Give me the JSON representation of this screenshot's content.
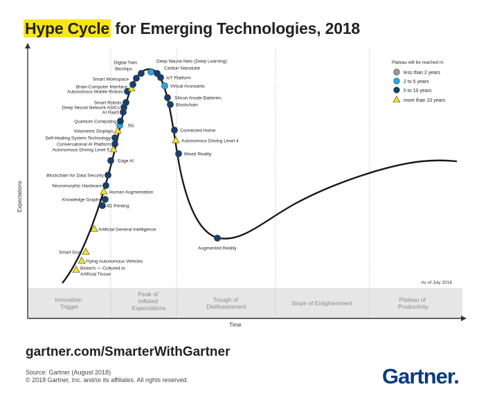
{
  "title": {
    "highlight": "Hype Cycle",
    "rest": "for Emerging Technologies, 2018"
  },
  "axes": {
    "y_label": "Expectations",
    "x_label": "Time"
  },
  "phases": [
    {
      "id": "innovation-trigger",
      "lines": [
        "Innovation",
        "Trigger"
      ]
    },
    {
      "id": "peak",
      "lines": [
        "Peak of",
        "Inflated",
        "Expectations"
      ]
    },
    {
      "id": "trough",
      "lines": [
        "Trough of",
        "Disillusionment"
      ]
    },
    {
      "id": "slope",
      "lines": [
        "Slope of Enlightenment"
      ]
    },
    {
      "id": "plateau",
      "lines": [
        "Plateau of",
        "Productivity"
      ]
    }
  ],
  "legend": {
    "title": "Plateau will be reached in:",
    "items": [
      {
        "label": "less than 2 years",
        "shape": "circle",
        "color": "#9a9a9a"
      },
      {
        "label": "2 to 5 years",
        "shape": "circle",
        "color": "#29a9e1"
      },
      {
        "label": "5 to 10 years",
        "shape": "circle",
        "color": "#17406e"
      },
      {
        "label": "more than 10 years",
        "shape": "triangle",
        "color": "#f7e51c"
      }
    ]
  },
  "as_of": "As of July 2018",
  "technologies": [
    {
      "label": "Biotech — Cultured or",
      "label2": "Artificial Tissue",
      "plateau": "more than 10 years"
    },
    {
      "label": "Flying Autonomous Vehicles",
      "plateau": "more than 10 years"
    },
    {
      "label": "Smart Dust",
      "plateau": "more than 10 years"
    },
    {
      "label": "Artificial General Intelligence",
      "plateau": "more than 10 years"
    },
    {
      "label": "4D Printing",
      "plateau": "5 to 10 years"
    },
    {
      "label": "Knowledge Graphs",
      "plateau": "5 to 10 years"
    },
    {
      "label": "Human Augmentation",
      "plateau": "more than 10 years"
    },
    {
      "label": "Neuromorphic Hardware",
      "plateau": "5 to 10 years"
    },
    {
      "label": "Blockchain for Data Security",
      "plateau": "5 to 10 years"
    },
    {
      "label": "Edge AI",
      "plateau": "5 to 10 years"
    },
    {
      "label": "Autonomous Driving Level 5",
      "plateau": "more than 10 years"
    },
    {
      "label": "Conversational AI Platform",
      "plateau": "5 to 10 years"
    },
    {
      "label": "Self-Healing System Technology",
      "plateau": "5 to 10 years"
    },
    {
      "label": "Volumetric Displays",
      "plateau": "more than 10 years"
    },
    {
      "label": "5G",
      "plateau": "2 to 5 years"
    },
    {
      "label": "Quantum Computing",
      "plateau": "5 to 10 years"
    },
    {
      "label": "AI PaaS",
      "plateau": "5 to 10 years"
    },
    {
      "label": "Deep Neural Network ASICs",
      "plateau": "5 to 10 years"
    },
    {
      "label": "Smart Robots",
      "plateau": "5 to 10 years"
    },
    {
      "label": "Autonomous Mobile Robots",
      "plateau": "5 to 10 years"
    },
    {
      "label": "Brain-Computer Interface",
      "plateau": "more than 10 years"
    },
    {
      "label": "Smart Workspace",
      "plateau": "5 to 10 years"
    },
    {
      "label": "Biochips",
      "plateau": "5 to 10 years"
    },
    {
      "label": "Digital Twin",
      "plateau": "5 to 10 years"
    },
    {
      "label": "Deep Neural Nets (Deep Learning)",
      "plateau": "2 to 5 years"
    },
    {
      "label": "Carbon Nanotube",
      "plateau": "5 to 10 years"
    },
    {
      "label": "IoT Platform",
      "plateau": "5 to 10 years"
    },
    {
      "label": "Virtual Assistants",
      "plateau": "2 to 5 years"
    },
    {
      "label": "Silicon Anode Batteries",
      "plateau": "5 to 10 years"
    },
    {
      "label": "Blockchain",
      "plateau": "5 to 10 years"
    },
    {
      "label": "Connected Home",
      "plateau": "5 to 10 years"
    },
    {
      "label": "Autonomous Driving Level 4",
      "plateau": "more than 10 years"
    },
    {
      "label": "Mixed Reality",
      "plateau": "5 to 10 years"
    },
    {
      "label": "Augmented Reality",
      "plateau": "5 to 10 years"
    }
  ],
  "footer": {
    "url": "gartner.com/SmarterWithGartner",
    "source": "Source: Gartner (August 2018)",
    "copyright": "© 2018 Gartner, Inc. and/or its affiliates. All rights reserved.",
    "brand": "Gartner",
    "brand_dot": "."
  }
}
